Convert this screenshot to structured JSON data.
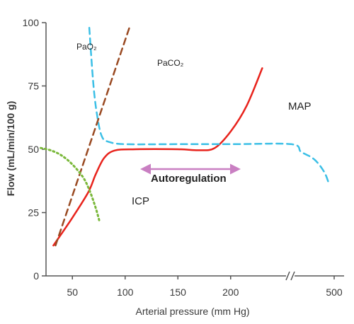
{
  "chart_data": {
    "type": "line",
    "xlabel": "Arterial  pressure (mm Hg)",
    "ylabel": "Flow (mL/min/100 g)",
    "ylim": [
      0,
      100
    ],
    "x_ticks": [
      {
        "value": 50,
        "label": "50"
      },
      {
        "value": 100,
        "label": "100"
      },
      {
        "value": 150,
        "label": "150"
      },
      {
        "value": 200,
        "label": "200"
      },
      {
        "value": 500,
        "label": "500"
      }
    ],
    "y_ticks": [
      {
        "value": 0,
        "label": "0"
      },
      {
        "value": 25,
        "label": "25"
      },
      {
        "value": 50,
        "label": "50"
      },
      {
        "value": 75,
        "label": "75"
      },
      {
        "value": 100,
        "label": "100"
      }
    ],
    "axis_break_after_x": 235,
    "grid": false,
    "series": [
      {
        "name": "MAP",
        "color": "#e8231c",
        "dash": "solid",
        "points": [
          [
            32,
            12
          ],
          [
            50,
            23
          ],
          [
            65,
            33
          ],
          [
            72,
            40
          ],
          [
            80,
            46.5
          ],
          [
            90,
            49.5
          ],
          [
            110,
            50
          ],
          [
            150,
            50
          ],
          [
            170,
            49.6
          ],
          [
            185,
            50.5
          ],
          [
            200,
            57
          ],
          [
            215,
            67
          ],
          [
            230,
            82
          ]
        ]
      },
      {
        "name": "PaO₂",
        "color": "#3bbfe6",
        "dash": "dashed",
        "points": [
          [
            66,
            98
          ],
          [
            70,
            75
          ],
          [
            74,
            62
          ],
          [
            78,
            55
          ],
          [
            84,
            53
          ],
          [
            100,
            52
          ],
          [
            150,
            52
          ],
          [
            200,
            52
          ],
          [
            240,
            52
          ],
          [
            300,
            49
          ],
          [
            380,
            46
          ],
          [
            440,
            41
          ],
          [
            470,
            36
          ]
        ]
      },
      {
        "name": "PaCO₂",
        "color": "#9a4a22",
        "dash": "dashed",
        "points": [
          [
            34,
            12
          ],
          [
            104,
            98
          ]
        ]
      },
      {
        "name": "ICP",
        "color": "#7ab83a",
        "dash": "dotted",
        "points": [
          [
            20,
            50.5
          ],
          [
            30,
            49.5
          ],
          [
            40,
            47.5
          ],
          [
            50,
            44
          ],
          [
            60,
            39
          ],
          [
            66,
            34
          ],
          [
            72,
            27
          ],
          [
            76,
            21
          ]
        ]
      }
    ],
    "annotations": {
      "pao2": "PaO₂",
      "paco2": "PaCO₂",
      "map": "MAP",
      "icp": "ICP",
      "autoregulation": "Autoregulation"
    },
    "autoregulation_range": {
      "from": 90,
      "to": 180,
      "y": 42,
      "color": "#c97fc2"
    }
  }
}
